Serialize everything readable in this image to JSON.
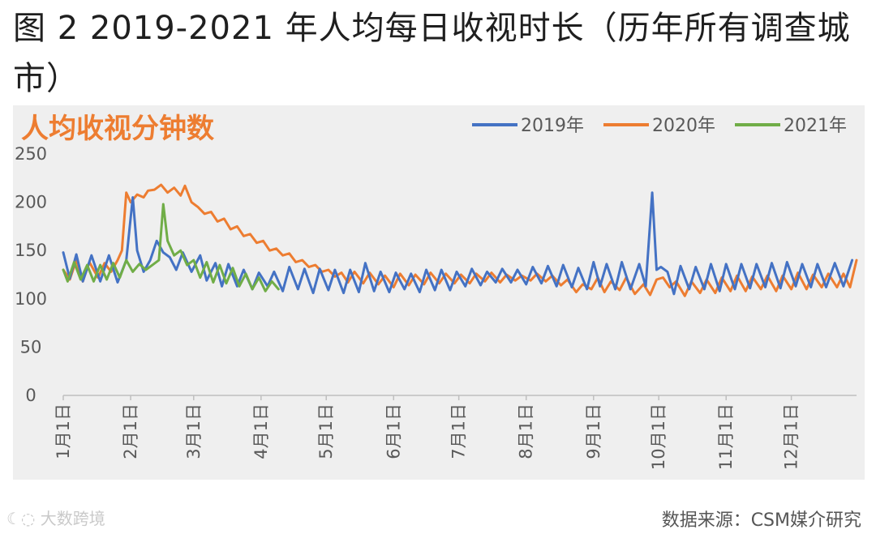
{
  "figure_title": "图 2 2019-2021 年人均每日收视时长（历年所有调查城市）",
  "source_text": "数据来源：CSM媒介研究",
  "watermark_text": "大数跨境",
  "colors": {
    "2019年": "#4472c4",
    "2020年": "#ed7d31",
    "2021年": "#70ad47",
    "title": "#ed7d31"
  },
  "chart_data": {
    "type": "line",
    "title": "人均收视分钟数",
    "xlabel": "",
    "ylabel": "",
    "ylim": [
      0,
      250
    ],
    "yticks": [
      0,
      50,
      100,
      150,
      200,
      250
    ],
    "xlim": [
      1,
      366
    ],
    "x_unit": "day of year",
    "x_tick_labels": [
      "1月1日",
      "2月1日",
      "3月1日",
      "4月1日",
      "5月1日",
      "6月1日",
      "7月1日",
      "8月1日",
      "9月1日",
      "10月1日",
      "11月1日",
      "12月1日"
    ],
    "x_tick_days": [
      1,
      32,
      61,
      92,
      122,
      153,
      183,
      214,
      245,
      275,
      306,
      336
    ],
    "grid": false,
    "legend_position": "top-right",
    "series": [
      {
        "name": "2019年",
        "points": [
          [
            1,
            148
          ],
          [
            4,
            121
          ],
          [
            7,
            146
          ],
          [
            10,
            118
          ],
          [
            14,
            145
          ],
          [
            18,
            118
          ],
          [
            22,
            145
          ],
          [
            26,
            117
          ],
          [
            30,
            140
          ],
          [
            33,
            205
          ],
          [
            35,
            150
          ],
          [
            38,
            128
          ],
          [
            41,
            140
          ],
          [
            44,
            160
          ],
          [
            47,
            148
          ],
          [
            50,
            143
          ],
          [
            53,
            130
          ],
          [
            56,
            148
          ],
          [
            60,
            128
          ],
          [
            64,
            145
          ],
          [
            67,
            119
          ],
          [
            71,
            137
          ],
          [
            74,
            113
          ],
          [
            77,
            136
          ],
          [
            81,
            113
          ],
          [
            84,
            130
          ],
          [
            88,
            110
          ],
          [
            91,
            127
          ],
          [
            95,
            113
          ],
          [
            98,
            128
          ],
          [
            102,
            108
          ],
          [
            105,
            133
          ],
          [
            109,
            110
          ],
          [
            112,
            131
          ],
          [
            116,
            106
          ],
          [
            119,
            131
          ],
          [
            123,
            109
          ],
          [
            126,
            130
          ],
          [
            130,
            106
          ],
          [
            133,
            130
          ],
          [
            137,
            107
          ],
          [
            140,
            137
          ],
          [
            144,
            108
          ],
          [
            147,
            128
          ],
          [
            151,
            107
          ],
          [
            154,
            127
          ],
          [
            158,
            110
          ],
          [
            161,
            126
          ],
          [
            165,
            107
          ],
          [
            168,
            130
          ],
          [
            172,
            109
          ],
          [
            175,
            130
          ],
          [
            179,
            109
          ],
          [
            182,
            128
          ],
          [
            186,
            113
          ],
          [
            189,
            131
          ],
          [
            193,
            114
          ],
          [
            196,
            128
          ],
          [
            200,
            117
          ],
          [
            203,
            131
          ],
          [
            207,
            117
          ],
          [
            210,
            130
          ],
          [
            214,
            115
          ],
          [
            217,
            133
          ],
          [
            221,
            116
          ],
          [
            224,
            134
          ],
          [
            228,
            113
          ],
          [
            231,
            135
          ],
          [
            235,
            112
          ],
          [
            238,
            132
          ],
          [
            242,
            110
          ],
          [
            245,
            138
          ],
          [
            248,
            113
          ],
          [
            251,
            136
          ],
          [
            255,
            110
          ],
          [
            258,
            138
          ],
          [
            262,
            110
          ],
          [
            266,
            136
          ],
          [
            269,
            113
          ],
          [
            272,
            210
          ],
          [
            274,
            130
          ],
          [
            276,
            133
          ],
          [
            279,
            128
          ],
          [
            282,
            105
          ],
          [
            285,
            134
          ],
          [
            289,
            110
          ],
          [
            292,
            133
          ],
          [
            296,
            110
          ],
          [
            299,
            136
          ],
          [
            303,
            108
          ],
          [
            306,
            136
          ],
          [
            310,
            110
          ],
          [
            313,
            136
          ],
          [
            317,
            111
          ],
          [
            320,
            136
          ],
          [
            324,
            112
          ],
          [
            327,
            137
          ],
          [
            331,
            111
          ],
          [
            334,
            138
          ],
          [
            338,
            113
          ],
          [
            341,
            136
          ],
          [
            345,
            112
          ],
          [
            348,
            136
          ],
          [
            352,
            112
          ],
          [
            356,
            137
          ],
          [
            360,
            113
          ],
          [
            364,
            140
          ]
        ]
      },
      {
        "name": "2020年",
        "points": [
          [
            1,
            130
          ],
          [
            4,
            120
          ],
          [
            7,
            140
          ],
          [
            10,
            118
          ],
          [
            13,
            138
          ],
          [
            17,
            122
          ],
          [
            20,
            137
          ],
          [
            23,
            128
          ],
          [
            26,
            140
          ],
          [
            28,
            150
          ],
          [
            30,
            210
          ],
          [
            32,
            200
          ],
          [
            35,
            208
          ],
          [
            38,
            205
          ],
          [
            40,
            212
          ],
          [
            43,
            213
          ],
          [
            46,
            218
          ],
          [
            49,
            210
          ],
          [
            52,
            215
          ],
          [
            55,
            207
          ],
          [
            57,
            217
          ],
          [
            60,
            200
          ],
          [
            63,
            195
          ],
          [
            66,
            188
          ],
          [
            69,
            190
          ],
          [
            72,
            180
          ],
          [
            75,
            183
          ],
          [
            78,
            172
          ],
          [
            81,
            175
          ],
          [
            84,
            165
          ],
          [
            87,
            167
          ],
          [
            90,
            158
          ],
          [
            93,
            160
          ],
          [
            96,
            150
          ],
          [
            99,
            152
          ],
          [
            102,
            145
          ],
          [
            105,
            147
          ],
          [
            108,
            138
          ],
          [
            111,
            140
          ],
          [
            114,
            133
          ],
          [
            117,
            135
          ],
          [
            120,
            128
          ],
          [
            123,
            130
          ],
          [
            126,
            123
          ],
          [
            129,
            127
          ],
          [
            132,
            117
          ],
          [
            135,
            128
          ],
          [
            139,
            116
          ],
          [
            142,
            127
          ],
          [
            146,
            115
          ],
          [
            149,
            124
          ],
          [
            153,
            112
          ],
          [
            156,
            126
          ],
          [
            160,
            114
          ],
          [
            163,
            125
          ],
          [
            167,
            115
          ],
          [
            170,
            127
          ],
          [
            174,
            116
          ],
          [
            177,
            126
          ],
          [
            181,
            116
          ],
          [
            184,
            125
          ],
          [
            188,
            116
          ],
          [
            191,
            126
          ],
          [
            195,
            118
          ],
          [
            198,
            127
          ],
          [
            202,
            117
          ],
          [
            205,
            125
          ],
          [
            209,
            119
          ],
          [
            212,
            124
          ],
          [
            216,
            119
          ],
          [
            219,
            126
          ],
          [
            223,
            118
          ],
          [
            226,
            124
          ],
          [
            230,
            114
          ],
          [
            233,
            120
          ],
          [
            237,
            107
          ],
          [
            240,
            115
          ],
          [
            244,
            110
          ],
          [
            247,
            122
          ],
          [
            250,
            107
          ],
          [
            253,
            118
          ],
          [
            257,
            109
          ],
          [
            260,
            122
          ],
          [
            264,
            105
          ],
          [
            268,
            115
          ],
          [
            271,
            104
          ],
          [
            274,
            120
          ],
          [
            277,
            122
          ],
          [
            280,
            112
          ],
          [
            283,
            118
          ],
          [
            287,
            103
          ],
          [
            290,
            118
          ],
          [
            294,
            106
          ],
          [
            297,
            120
          ],
          [
            301,
            106
          ],
          [
            304,
            122
          ],
          [
            308,
            108
          ],
          [
            311,
            124
          ],
          [
            315,
            108
          ],
          [
            318,
            123
          ],
          [
            322,
            110
          ],
          [
            325,
            124
          ],
          [
            329,
            108
          ],
          [
            332,
            124
          ],
          [
            336,
            110
          ],
          [
            339,
            127
          ],
          [
            343,
            110
          ],
          [
            346,
            125
          ],
          [
            350,
            112
          ],
          [
            353,
            126
          ],
          [
            357,
            112
          ],
          [
            360,
            126
          ],
          [
            363,
            112
          ],
          [
            366,
            140
          ]
        ]
      },
      {
        "name": "2021年",
        "points": [
          [
            1,
            130
          ],
          [
            3,
            118
          ],
          [
            6,
            138
          ],
          [
            9,
            120
          ],
          [
            12,
            135
          ],
          [
            15,
            118
          ],
          [
            18,
            135
          ],
          [
            21,
            120
          ],
          [
            24,
            137
          ],
          [
            27,
            122
          ],
          [
            30,
            140
          ],
          [
            33,
            128
          ],
          [
            36,
            136
          ],
          [
            39,
            130
          ],
          [
            42,
            135
          ],
          [
            45,
            140
          ],
          [
            47,
            198
          ],
          [
            49,
            160
          ],
          [
            52,
            145
          ],
          [
            55,
            150
          ],
          [
            58,
            135
          ],
          [
            61,
            140
          ],
          [
            64,
            122
          ],
          [
            67,
            138
          ],
          [
            70,
            117
          ],
          [
            73,
            135
          ],
          [
            76,
            116
          ],
          [
            79,
            132
          ],
          [
            82,
            113
          ],
          [
            85,
            126
          ],
          [
            88,
            110
          ],
          [
            91,
            122
          ],
          [
            94,
            108
          ],
          [
            97,
            118
          ],
          [
            100,
            110
          ]
        ]
      }
    ]
  }
}
